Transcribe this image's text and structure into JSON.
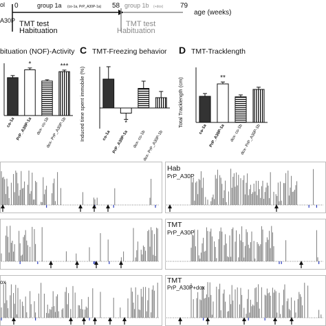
{
  "timeline": {
    "left_clip_1": "ol",
    "left_clip_2": "A30P",
    "start": "0",
    "group1a_label": "group 1a",
    "group1a_note": "(co-1a, PrP_A30P-1a)",
    "mid": "58",
    "group1b_label": "group 1b",
    "group1b_note": "(+dox)",
    "end": "79",
    "axis_label": "age (weeks)",
    "test1_line1": "TMT test",
    "test1_line2": "Habituation",
    "test2_line1": "TMT test",
    "test2_line2": "Habituation"
  },
  "panels": {
    "B": {
      "title_partial": "bituation (NOF)-Activity"
    },
    "C": {
      "letter": "C",
      "title": "TMT-Freezing behavior",
      "ylabel": "Induced time spent immobile (%)"
    },
    "D": {
      "letter": "D",
      "title": "TMT-Tracklength",
      "ylabel": "Total Tracklength (cm)"
    }
  },
  "traces": {
    "right_labels": [
      [
        "Hab",
        "PrP_A30P"
      ],
      [
        "TMT",
        "PrP_A30P"
      ],
      [
        "TMT",
        "PrP_A30P+dox"
      ]
    ],
    "left_clip_bottom": "ox"
  },
  "chart_data": [
    {
      "type": "bar",
      "panel": "B",
      "title": "bituation (NOF)-Activity",
      "categories": [
        "co-1a",
        "PrP_A30P-1a",
        "dox- co-1b",
        "dox- PrP_A30P-1b"
      ],
      "values": [
        1.45,
        1.75,
        1.32,
        1.68
      ],
      "errors": [
        0.08,
        0.07,
        0.05,
        0.06
      ],
      "significance": [
        "",
        "*",
        "",
        "***"
      ],
      "ylim": [
        0,
        2
      ]
    },
    {
      "type": "bar",
      "panel": "C",
      "title": "TMT-Freezing behavior",
      "ylabel": "Induced time spent immobile (%)",
      "categories": [
        "co-1a",
        "PrP_A30P-1a",
        "dox- co-1b",
        "dox- PrP_A30P-1b"
      ],
      "values": [
        14,
        -2.5,
        9.5,
        5
      ],
      "errors": [
        6,
        3,
        3.5,
        3
      ],
      "significance": [
        "",
        "*",
        "",
        ""
      ],
      "ylim": [
        -10,
        20
      ],
      "yticks": [
        -10,
        0,
        10,
        20
      ]
    },
    {
      "type": "bar",
      "panel": "D",
      "title": "TMT-Tracklength",
      "ylabel": "Total Tracklength (cm)",
      "categories": [
        "co-1a",
        "PrP_A30P-1a",
        "dox- co-1b",
        "dox- PrP_A30P-1b"
      ],
      "values": [
        95,
        140,
        93,
        120
      ],
      "errors": [
        10,
        7,
        7,
        8
      ],
      "significance": [
        "",
        "**",
        "",
        ""
      ],
      "ylim": [
        0,
        200
      ],
      "yticks": [
        0,
        50,
        100,
        150,
        200
      ]
    }
  ]
}
